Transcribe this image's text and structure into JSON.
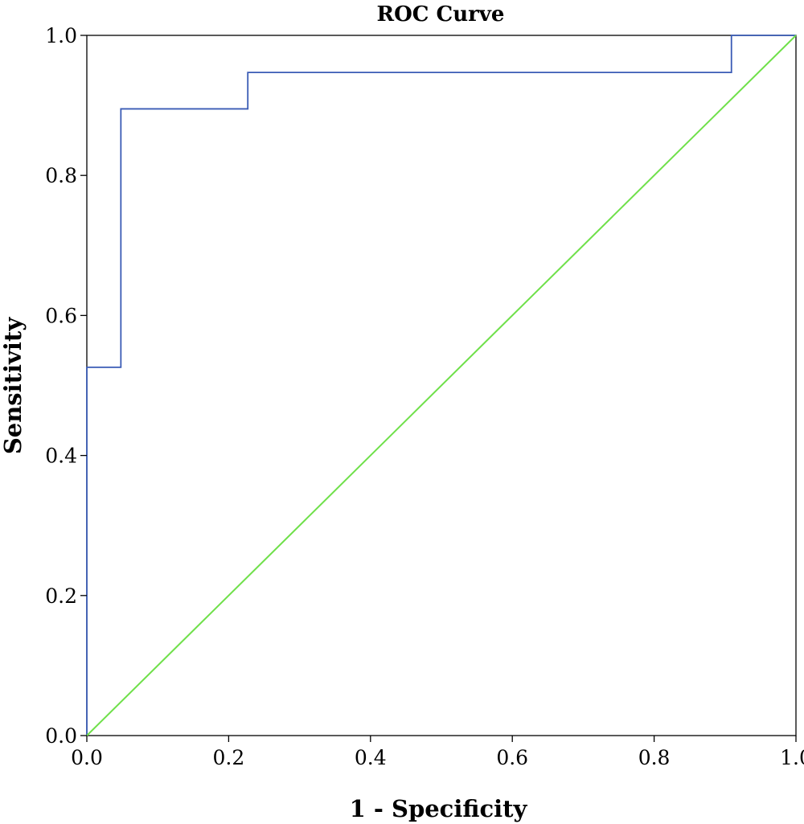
{
  "chart_data": {
    "type": "line",
    "title": "ROC Curve",
    "xlabel": "1 - Specificity",
    "ylabel": "Sensitivity",
    "xlim": [
      0.0,
      1.0
    ],
    "ylim": [
      0.0,
      1.0
    ],
    "x_ticks": [
      "0.0",
      "0.2",
      "0.4",
      "0.6",
      "0.8",
      "1.0"
    ],
    "y_ticks": [
      "0.0",
      "0.2",
      "0.4",
      "0.6",
      "0.8",
      "1.0"
    ],
    "grid": false,
    "series": [
      {
        "color": "#3a5bb5",
        "step": true,
        "x": [
          0.0,
          0.0,
          0.048,
          0.048,
          0.227,
          0.227,
          0.909,
          0.909,
          1.0
        ],
        "y": [
          0.0,
          0.526,
          0.526,
          0.895,
          0.895,
          0.947,
          0.947,
          1.0,
          1.0
        ]
      },
      {
        "color": "#6fe04a",
        "step": false,
        "x": [
          0.0,
          1.0
        ],
        "y": [
          0.0,
          1.0
        ]
      }
    ]
  }
}
